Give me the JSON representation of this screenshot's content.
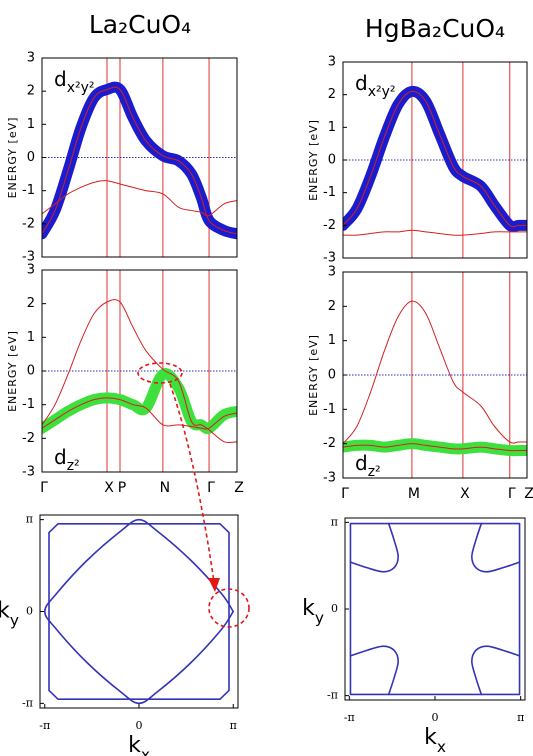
{
  "chart_data": [
    {
      "type": "line",
      "title": "La₂CuO₄",
      "annotation": {
        "text": "d",
        "sub": "x²y²"
      },
      "ylabel": "ENERGY [eV]",
      "x": [
        0,
        0.2,
        0.4,
        0.6,
        0.8,
        1.0,
        1.2,
        1.4,
        1.6,
        1.86,
        2.1,
        2.3,
        2.45,
        2.57,
        2.8,
        3.0
      ],
      "xlim": [
        0,
        3.0
      ],
      "ylim": [
        -3,
        3
      ],
      "yticks": [
        3,
        2,
        1,
        0,
        -1,
        -2,
        -3
      ],
      "vlines": [
        1.0,
        1.2,
        1.86,
        2.57
      ],
      "fermi_level": 0,
      "series": [
        {
          "color": "#1c1ccf",
          "weight": "fat",
          "values": [
            -2.3,
            -1.6,
            -0.4,
            0.9,
            1.8,
            2.05,
            2.05,
            1.2,
            0.5,
            0.05,
            -0.1,
            -0.5,
            -1.2,
            -1.9,
            -2.2,
            -2.3
          ]
        },
        {
          "color": "#d42020",
          "weight": "thin",
          "values": [
            -2.3,
            -1.6,
            -0.4,
            0.9,
            1.8,
            2.05,
            2.05,
            1.2,
            0.5,
            0.05,
            -0.1,
            -0.5,
            -1.2,
            -1.9,
            -2.2,
            -2.3
          ]
        },
        {
          "color": "#d42020",
          "weight": "thin",
          "values": [
            -1.7,
            -1.4,
            -1.1,
            -0.9,
            -0.75,
            -0.7,
            -0.8,
            -0.9,
            -1.0,
            -1.1,
            -1.5,
            -1.6,
            -1.65,
            -1.75,
            -1.4,
            -1.3
          ]
        }
      ]
    },
    {
      "type": "line",
      "annotation": {
        "text": "d",
        "sub": "z²"
      },
      "ylabel": "ENERGY [eV]",
      "x": [
        0,
        0.2,
        0.4,
        0.6,
        0.8,
        1.0,
        1.2,
        1.4,
        1.6,
        1.86,
        2.1,
        2.3,
        2.45,
        2.57,
        2.8,
        3.0
      ],
      "xlim": [
        0,
        3.0
      ],
      "ylim": [
        -3,
        3
      ],
      "yticks": [
        3,
        2,
        1,
        0,
        -1,
        -2,
        -3
      ],
      "fermi_level": 0,
      "xticks": [
        {
          "value": 0,
          "label": "Γ"
        },
        {
          "value": 1.0,
          "label": "X"
        },
        {
          "value": 1.2,
          "label": "P"
        },
        {
          "value": 1.86,
          "label": "N"
        },
        {
          "value": 2.57,
          "label": "Γ"
        },
        {
          "value": 3.0,
          "label": "Z"
        }
      ],
      "series": [
        {
          "color": "#3ee03e",
          "weight": "fat",
          "values": [
            -1.7,
            -1.45,
            -1.2,
            -1.0,
            -0.85,
            -0.8,
            -0.85,
            -1.0,
            -1.1,
            -0.1,
            -0.5,
            -1.5,
            -1.6,
            -1.7,
            -1.3,
            -1.2
          ]
        },
        {
          "color": "#d42020",
          "weight": "thin",
          "values": [
            -1.6,
            -1.0,
            -0.1,
            0.9,
            1.7,
            2.05,
            2.05,
            1.3,
            0.6,
            0.05,
            -0.3,
            -1.5,
            -1.6,
            -1.75,
            -2.1,
            -2.1
          ]
        },
        {
          "color": "#d42020",
          "weight": "thin",
          "values": [
            -1.7,
            -1.45,
            -1.2,
            -1.0,
            -0.85,
            -0.8,
            -0.85,
            -1.0,
            -1.1,
            -1.6,
            -1.6,
            -1.65,
            -1.7,
            -1.7,
            -1.35,
            -1.25
          ]
        }
      ]
    },
    {
      "type": "line",
      "xlabel": {
        "text": "k",
        "sub": "x"
      },
      "ylabel": {
        "text": "k",
        "sub": "y"
      },
      "xlim": [
        -3.3,
        3.3
      ],
      "ylim": [
        -3.3,
        3.3
      ],
      "xticks": [
        {
          "value": -3.1416,
          "label": "-π"
        },
        0,
        {
          "value": 3.1416,
          "label": "π"
        }
      ],
      "yticks": [
        {
          "value": 3.1416,
          "label": "π"
        },
        0,
        {
          "value": -3.1416,
          "label": "-π"
        }
      ],
      "series": [
        {
          "color": "#3434b8",
          "smooth": true,
          "x": [
            3.14,
            2.75,
            1.74,
            0.61,
            0,
            -0.61,
            -1.74,
            -2.75,
            -3.14,
            -2.75,
            -1.74,
            -0.61,
            0,
            0.61,
            1.74,
            2.75,
            3.14
          ],
          "values": [
            0,
            0.61,
            1.74,
            2.75,
            3.14,
            2.75,
            1.74,
            0.61,
            0,
            -0.61,
            -1.74,
            -2.75,
            -3.14,
            -2.75,
            -1.74,
            -0.61,
            0
          ]
        },
        {
          "color": "#3434b8",
          "smooth": false,
          "x": [
            -2.7,
            2.7,
            3.0,
            3.0,
            2.7,
            -2.7,
            -3.0,
            -3.0,
            -2.7
          ],
          "values": [
            3.0,
            3.0,
            2.7,
            -2.7,
            -3.0,
            -3.0,
            -2.7,
            2.7,
            3.0
          ]
        }
      ]
    },
    {
      "type": "line",
      "title": "HgBa₂CuO₄",
      "annotation": {
        "text": "d",
        "sub": "x²y²"
      },
      "ylabel": "ENERGY [eV]",
      "x": [
        0,
        0.2,
        0.4,
        0.6,
        0.8,
        1.0,
        1.2,
        1.4,
        1.6,
        1.74,
        2.0,
        2.2,
        2.42,
        2.55,
        2.67
      ],
      "xlim": [
        0,
        2.67
      ],
      "ylim": [
        -3,
        3
      ],
      "yticks": [
        3,
        2,
        1,
        0,
        -1,
        -2,
        -3
      ],
      "vlines": [
        1.0,
        1.74,
        2.42
      ],
      "fermi_level": 0,
      "series": [
        {
          "color": "#1c1ccf",
          "weight": "fat",
          "values": [
            -2.0,
            -1.5,
            -0.5,
            0.7,
            1.7,
            2.1,
            1.8,
            0.8,
            -0.2,
            -0.5,
            -0.8,
            -1.4,
            -2.0,
            -2.0,
            -2.0
          ]
        },
        {
          "color": "#d42020",
          "weight": "thin",
          "values": [
            -2.0,
            -1.5,
            -0.5,
            0.7,
            1.7,
            2.1,
            1.8,
            0.8,
            -0.2,
            -0.5,
            -0.8,
            -1.4,
            -2.0,
            -2.0,
            -2.0
          ]
        },
        {
          "color": "#d42020",
          "weight": "thin",
          "values": [
            -2.3,
            -2.3,
            -2.25,
            -2.2,
            -2.2,
            -2.15,
            -2.2,
            -2.25,
            -2.3,
            -2.3,
            -2.25,
            -2.2,
            -2.2,
            -2.2,
            -2.2
          ]
        }
      ]
    },
    {
      "type": "line",
      "annotation": {
        "text": "d",
        "sub": "z²"
      },
      "ylabel": "ENERGY [eV]",
      "x": [
        0,
        0.2,
        0.4,
        0.6,
        0.8,
        1.0,
        1.2,
        1.4,
        1.6,
        1.74,
        2.0,
        2.2,
        2.42,
        2.55,
        2.67
      ],
      "xlim": [
        0,
        2.67
      ],
      "ylim": [
        -3,
        3
      ],
      "yticks": [
        3,
        2,
        1,
        0,
        -1,
        -2,
        -3
      ],
      "fermi_level": 0,
      "xticks": [
        {
          "value": 0,
          "label": "Γ"
        },
        {
          "value": 1.0,
          "label": "M"
        },
        {
          "value": 1.74,
          "label": "X"
        },
        {
          "value": 2.42,
          "label": "Γ"
        },
        {
          "value": 2.67,
          "label": "Z"
        }
      ],
      "series": [
        {
          "color": "#3ee03e",
          "weight": "fat",
          "values": [
            -2.1,
            -2.05,
            -2.05,
            -2.1,
            -2.05,
            -2.0,
            -2.05,
            -2.1,
            -2.15,
            -2.15,
            -2.1,
            -2.15,
            -2.2,
            -2.2,
            -2.2
          ]
        },
        {
          "color": "#d42020",
          "weight": "thin",
          "values": [
            -2.0,
            -1.5,
            -0.5,
            0.7,
            1.7,
            2.15,
            1.8,
            0.8,
            -0.2,
            -0.5,
            -0.9,
            -1.5,
            -1.95,
            -1.95,
            -1.95
          ]
        },
        {
          "color": "#d42020",
          "weight": "thin",
          "values": [
            -2.1,
            -2.05,
            -2.05,
            -2.1,
            -2.05,
            -2.0,
            -2.05,
            -2.1,
            -2.15,
            -2.15,
            -2.1,
            -2.15,
            -2.2,
            -2.2,
            -2.2
          ]
        }
      ]
    },
    {
      "type": "line",
      "xlabel": {
        "text": "k",
        "sub": "x"
      },
      "ylabel": {
        "text": "k",
        "sub": "y"
      },
      "xlim": [
        -3.3,
        3.3
      ],
      "ylim": [
        -3.3,
        3.3
      ],
      "xticks": [
        {
          "value": -3.1416,
          "label": "-π"
        },
        0,
        {
          "value": 3.1416,
          "label": "π"
        }
      ],
      "yticks": [
        {
          "value": 3.1416,
          "label": "π"
        },
        0,
        {
          "value": -3.1416,
          "label": "-π"
        }
      ],
      "series": [
        {
          "color": "#3434b8",
          "smooth": true,
          "x": [
            -3.1,
            -2.5,
            -1.9,
            -1.5,
            -1.35,
            -1.5,
            -1.7
          ],
          "values": [
            1.7,
            1.5,
            1.35,
            1.5,
            1.9,
            2.5,
            3.1
          ]
        },
        {
          "color": "#3434b8",
          "smooth": true,
          "x": [
            3.1,
            2.5,
            1.9,
            1.5,
            1.35,
            1.5,
            1.7
          ],
          "values": [
            1.7,
            1.5,
            1.35,
            1.5,
            1.9,
            2.5,
            3.1
          ]
        },
        {
          "color": "#3434b8",
          "smooth": true,
          "x": [
            -3.1,
            -2.5,
            -1.9,
            -1.5,
            -1.35,
            -1.5,
            -1.7
          ],
          "values": [
            -1.7,
            -1.5,
            -1.35,
            -1.5,
            -1.9,
            -2.5,
            -3.1
          ]
        },
        {
          "color": "#3434b8",
          "smooth": true,
          "x": [
            3.1,
            2.5,
            1.9,
            1.5,
            1.35,
            1.5,
            1.7
          ],
          "values": [
            -1.7,
            -1.5,
            -1.35,
            -1.5,
            -1.9,
            -2.5,
            -3.1
          ]
        },
        {
          "color": "#3434b8",
          "smooth": false,
          "x": [
            -3.1,
            3.1,
            3.1,
            -3.1,
            -3.1
          ],
          "values": [
            3.1,
            3.1,
            -3.1,
            -3.1,
            3.1
          ]
        }
      ]
    }
  ]
}
